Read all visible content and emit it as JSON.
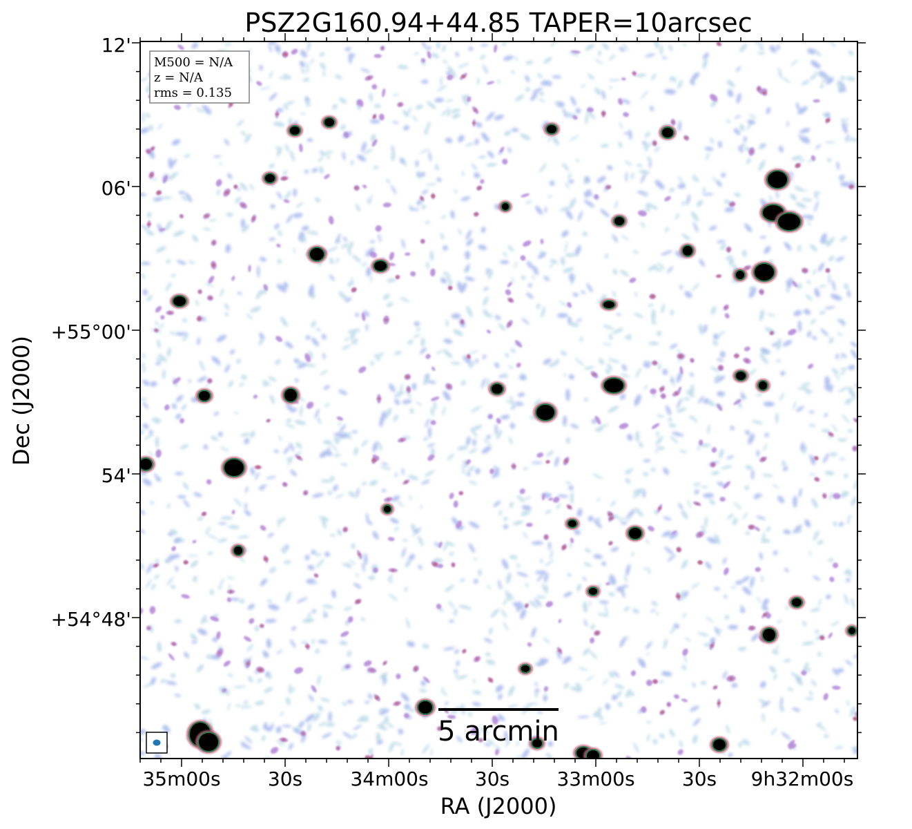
{
  "title": "PSZ2G160.94+44.85 TAPER=10arcsec",
  "xlabel": "RA (J2000)",
  "ylabel": "Dec (J2000)",
  "x_ticks": [
    "35m00s",
    "30s",
    "34m00s",
    "30s",
    "33m00s",
    "30s",
    "9h32m00s"
  ],
  "y_ticks": [
    "12'",
    "06'",
    "+55°00'",
    "54'",
    "+54°48'"
  ],
  "info_box": {
    "m500": "M500 = N/A",
    "z": "z = N/A",
    "rms": "rms = 0.135"
  },
  "scalebar_label": "5 arcmin",
  "colors": {
    "faint_noise": "#b8d8e6",
    "noise_blue": "#aabbee",
    "noise_purple": "#b48ad8",
    "noise_red": "#c0607a",
    "source_ring": "#2e7a50",
    "source_core": "#000000",
    "beam": "#1f77b4"
  }
}
